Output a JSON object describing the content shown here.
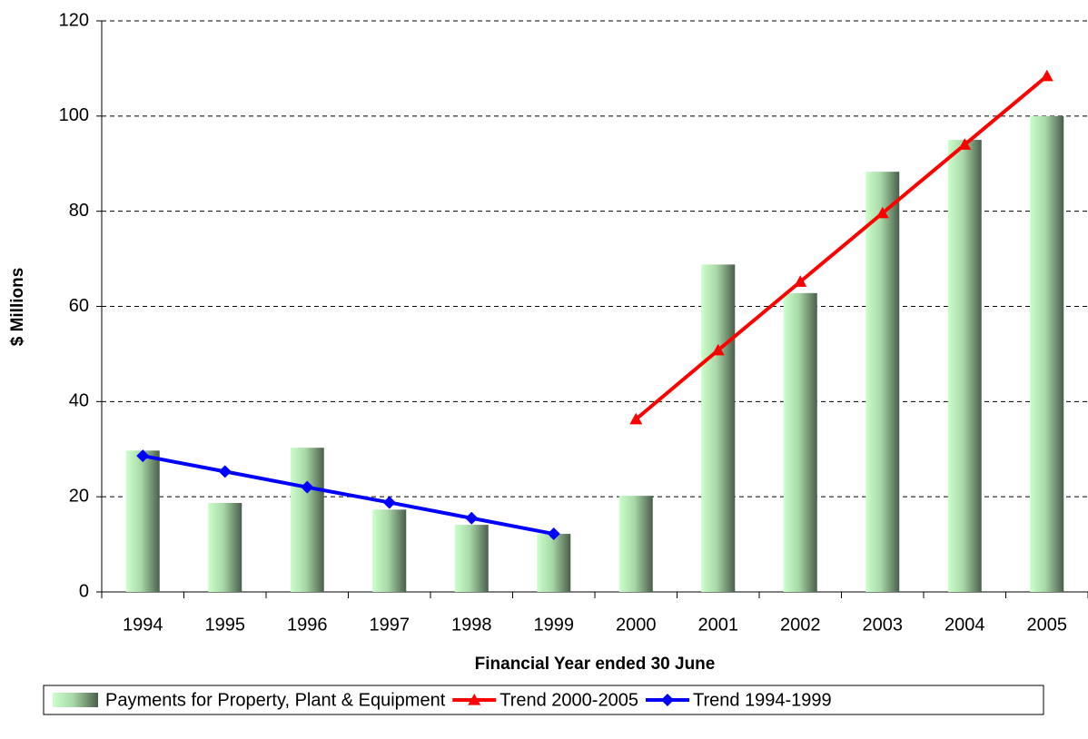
{
  "chart_data": {
    "type": "bar",
    "y_label": "$ Millions",
    "x_label": "Financial Year ended 30 June",
    "categories": [
      "1994",
      "1995",
      "1996",
      "1997",
      "1998",
      "1999",
      "2000",
      "2001",
      "2002",
      "2003",
      "2004",
      "2005"
    ],
    "series": [
      {
        "name": "Payments for Property, Plant & Equipment",
        "type": "bar",
        "color": "#5f7a5f",
        "values": [
          29.7,
          18.7,
          30.3,
          17.3,
          14.1,
          12.2,
          20.2,
          68.8,
          62.8,
          88.3,
          95.0,
          100.0
        ]
      },
      {
        "name": "Trend 2000-2005",
        "type": "line",
        "marker": "triangle",
        "color": "#ff0000",
        "values": [
          null,
          null,
          null,
          null,
          null,
          null,
          36.3,
          50.8,
          65.2,
          79.6,
          94.0,
          108.4
        ]
      },
      {
        "name": "Trend 1994-1999",
        "type": "line",
        "marker": "diamond",
        "color": "#0000ff",
        "values": [
          28.6,
          25.3,
          22.0,
          18.8,
          15.5,
          12.2,
          null,
          null,
          null,
          null,
          null,
          null
        ]
      }
    ],
    "ylim": [
      0,
      120
    ],
    "yticks": [
      0,
      20,
      40,
      60,
      80,
      100,
      120
    ],
    "grid": true,
    "legend": "bottom"
  }
}
